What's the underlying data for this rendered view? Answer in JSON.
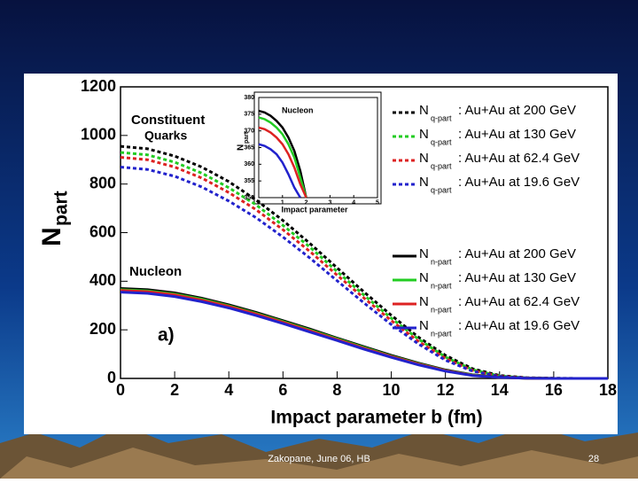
{
  "chart_data": [
    {
      "type": "line",
      "y_label": "N",
      "y_label_sub": "part",
      "x_label": "Impact parameter b (fm)",
      "annotations": [
        "Constituent",
        "Quarks",
        "Nucleon",
        "a)"
      ],
      "x": [
        0,
        1,
        2,
        3,
        4,
        5,
        6,
        7,
        8,
        9,
        10,
        11,
        12,
        13,
        14,
        15,
        16,
        17,
        18
      ],
      "xlim": [
        0,
        18
      ],
      "xticks": [
        0,
        2,
        4,
        6,
        8,
        10,
        12,
        14,
        16,
        18
      ],
      "ylim": [
        0,
        1200
      ],
      "yticks": [
        0,
        200,
        400,
        600,
        800,
        1000,
        1200
      ],
      "series": [
        {
          "prefix": "N",
          "sub": "q-part",
          "name": ": Au+Au at 200 GeV",
          "color": "#000000",
          "dash": true,
          "values": [
            955,
            945,
            915,
            870,
            810,
            735,
            650,
            555,
            455,
            355,
            260,
            170,
            95,
            40,
            12,
            3,
            1,
            0,
            0
          ]
        },
        {
          "prefix": "N",
          "sub": "q-part",
          "name": ": Au+Au at 130 GeV",
          "color": "#22cc22",
          "dash": true,
          "values": [
            930,
            920,
            890,
            845,
            785,
            715,
            630,
            540,
            440,
            342,
            248,
            162,
            88,
            36,
            10,
            2,
            0,
            0,
            0
          ]
        },
        {
          "prefix": "N",
          "sub": "q-part",
          "name": ": Au+Au at 62.4 GeV",
          "color": "#dd2222",
          "dash": true,
          "values": [
            910,
            900,
            870,
            825,
            765,
            695,
            612,
            522,
            425,
            330,
            238,
            153,
            82,
            33,
            9,
            2,
            0,
            0,
            0
          ]
        },
        {
          "prefix": "N",
          "sub": "q-part",
          "name": ": Au+Au at 19.6 GeV",
          "color": "#2222cc",
          "dash": true,
          "values": [
            870,
            860,
            832,
            788,
            730,
            662,
            582,
            495,
            402,
            310,
            222,
            142,
            75,
            30,
            8,
            2,
            0,
            0,
            0
          ]
        },
        {
          "prefix": "N",
          "sub": "n-part",
          "name": ": Au+Au at 200 GeV",
          "color": "#000000",
          "dash": false,
          "values": [
            370,
            365,
            352,
            330,
            303,
            272,
            238,
            203,
            166,
            130,
            95,
            63,
            35,
            15,
            5,
            1,
            0,
            0,
            0
          ]
        },
        {
          "prefix": "N",
          "sub": "n-part",
          "name": ": Au+Au at 130 GeV",
          "color": "#22cc22",
          "dash": false,
          "values": [
            365,
            360,
            347,
            326,
            299,
            268,
            234,
            199,
            163,
            127,
            92,
            61,
            33,
            14,
            4,
            1,
            0,
            0,
            0
          ]
        },
        {
          "prefix": "N",
          "sub": "n-part",
          "name": ": Au+Au at 62.4 GeV",
          "color": "#dd2222",
          "dash": false,
          "values": [
            362,
            357,
            344,
            322,
            296,
            265,
            231,
            196,
            160,
            124,
            90,
            59,
            32,
            13,
            4,
            1,
            0,
            0,
            0
          ]
        },
        {
          "prefix": "N",
          "sub": "n-part",
          "name": ": Au+Au at 19.6 GeV",
          "color": "#2222cc",
          "dash": false,
          "values": [
            355,
            350,
            337,
            316,
            290,
            259,
            226,
            191,
            156,
            120,
            87,
            56,
            30,
            12,
            4,
            1,
            0,
            0,
            0
          ]
        }
      ]
    },
    {
      "type": "line",
      "title": "Nucleon",
      "y_label": "N",
      "y_label_sub": "part",
      "x_label": "Impact parameter",
      "x": [
        0,
        0.25,
        0.5,
        0.75,
        1,
        1.25,
        1.5,
        1.75,
        2
      ],
      "xlim": [
        0,
        5
      ],
      "xticks": [
        0,
        1,
        2,
        3,
        4,
        5
      ],
      "ylim": [
        350,
        380
      ],
      "yticks": [
        350,
        355,
        360,
        365,
        370,
        375,
        380
      ],
      "series": [
        {
          "color": "#000000",
          "values": [
            376,
            375.5,
            374.5,
            373,
            371,
            368,
            364,
            358,
            350
          ]
        },
        {
          "color": "#22cc22",
          "values": [
            374,
            373.5,
            372.5,
            371,
            369,
            366,
            362,
            356,
            350
          ]
        },
        {
          "color": "#dd2222",
          "values": [
            371,
            370.5,
            369.5,
            368,
            366,
            363,
            359,
            354,
            350
          ]
        },
        {
          "color": "#2222cc",
          "values": [
            366,
            365.5,
            364.5,
            363,
            360.5,
            357,
            353,
            350,
            null
          ]
        }
      ]
    }
  ],
  "footer": {
    "text": "Zakopane, June 06, HB",
    "page": "28"
  }
}
